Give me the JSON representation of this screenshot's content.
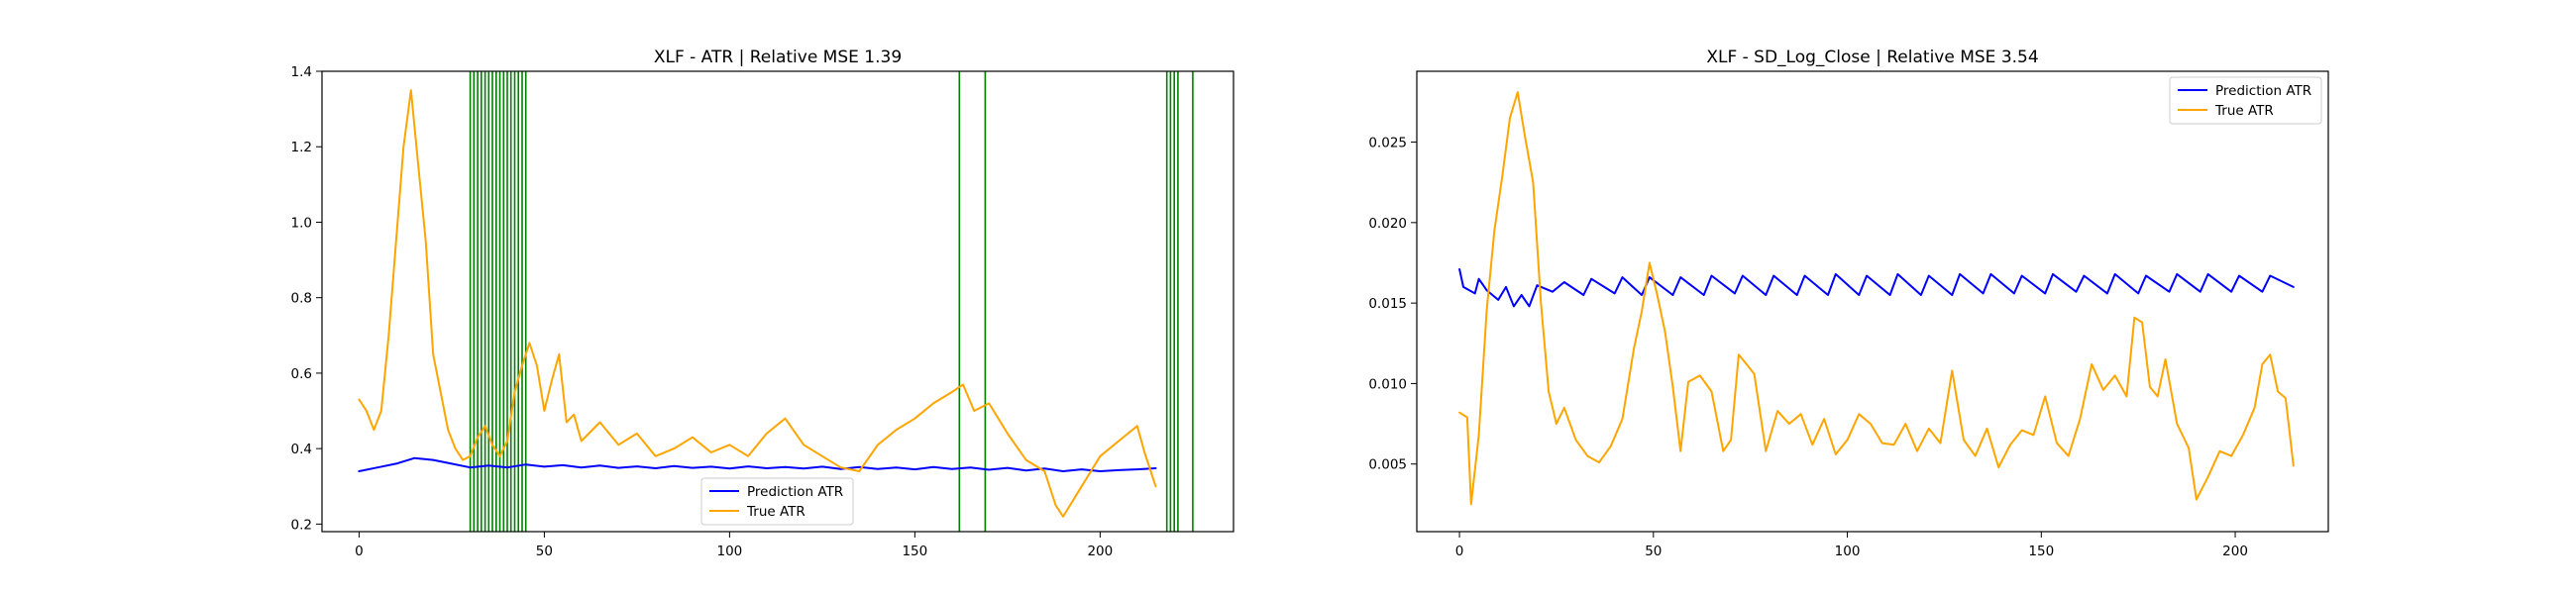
{
  "chart_data": [
    {
      "type": "line",
      "title": "XLF - ATR | Relative MSE 1.39",
      "xlabel": "",
      "ylabel": "",
      "xlim": [
        -10,
        236
      ],
      "ylim": [
        0.18,
        1.4
      ],
      "xticks": [
        0,
        50,
        100,
        150,
        200
      ],
      "yticks": [
        0.2,
        0.4,
        0.6,
        0.8,
        1.0,
        1.2,
        1.4
      ],
      "ytick_labels": [
        "0.2",
        "0.4",
        "0.6",
        "0.8",
        "1.0",
        "1.2",
        "1.4"
      ],
      "legend_position": "bottom-center",
      "vertical_lines": {
        "color": "#008000",
        "x": [
          30,
          31,
          32,
          33,
          34,
          35,
          36,
          37,
          38,
          39,
          40,
          41,
          42,
          43,
          44,
          45,
          162,
          169,
          218,
          219,
          220,
          221,
          225
        ]
      },
      "series": [
        {
          "name": "Prediction ATR",
          "color": "#0000ff",
          "x": [
            0,
            5,
            10,
            15,
            20,
            25,
            30,
            35,
            40,
            45,
            50,
            55,
            60,
            65,
            70,
            75,
            80,
            85,
            90,
            95,
            100,
            105,
            110,
            115,
            120,
            125,
            130,
            135,
            140,
            145,
            150,
            155,
            160,
            165,
            170,
            175,
            180,
            185,
            190,
            195,
            200,
            205,
            210,
            215
          ],
          "values": [
            0.34,
            0.35,
            0.36,
            0.375,
            0.37,
            0.36,
            0.35,
            0.355,
            0.35,
            0.358,
            0.352,
            0.356,
            0.35,
            0.355,
            0.349,
            0.353,
            0.348,
            0.354,
            0.349,
            0.352,
            0.347,
            0.353,
            0.348,
            0.351,
            0.347,
            0.352,
            0.346,
            0.351,
            0.346,
            0.35,
            0.345,
            0.351,
            0.346,
            0.35,
            0.344,
            0.349,
            0.342,
            0.347,
            0.34,
            0.345,
            0.34,
            0.343,
            0.345,
            0.348
          ]
        },
        {
          "name": "True ATR",
          "color": "#ffa500",
          "x": [
            0,
            2,
            4,
            6,
            8,
            10,
            12,
            14,
            16,
            18,
            20,
            22,
            24,
            26,
            28,
            30,
            32,
            34,
            36,
            38,
            40,
            42,
            44,
            46,
            48,
            50,
            52,
            54,
            56,
            58,
            60,
            65,
            70,
            75,
            80,
            85,
            90,
            95,
            100,
            105,
            110,
            115,
            120,
            125,
            130,
            135,
            140,
            145,
            150,
            155,
            160,
            163,
            166,
            170,
            175,
            180,
            185,
            188,
            190,
            195,
            200,
            205,
            210,
            212,
            215
          ],
          "values": [
            0.53,
            0.5,
            0.45,
            0.5,
            0.7,
            0.95,
            1.2,
            1.35,
            1.15,
            0.95,
            0.65,
            0.55,
            0.45,
            0.4,
            0.37,
            0.38,
            0.43,
            0.46,
            0.41,
            0.38,
            0.42,
            0.55,
            0.62,
            0.68,
            0.62,
            0.5,
            0.58,
            0.65,
            0.47,
            0.49,
            0.42,
            0.47,
            0.41,
            0.44,
            0.38,
            0.4,
            0.43,
            0.39,
            0.41,
            0.38,
            0.44,
            0.48,
            0.41,
            0.38,
            0.35,
            0.34,
            0.41,
            0.45,
            0.48,
            0.52,
            0.55,
            0.57,
            0.5,
            0.52,
            0.44,
            0.37,
            0.34,
            0.25,
            0.22,
            0.3,
            0.38,
            0.42,
            0.46,
            0.39,
            0.3
          ]
        }
      ]
    },
    {
      "type": "line",
      "title": "XLF - SD_Log_Close | Relative MSE 3.54",
      "xlabel": "",
      "ylabel": "",
      "xlim": [
        -11,
        224
      ],
      "ylim": [
        0.0008,
        0.0294
      ],
      "xticks": [
        0,
        50,
        100,
        150,
        200
      ],
      "yticks": [
        0.005,
        0.01,
        0.015,
        0.02,
        0.025
      ],
      "ytick_labels": [
        "0.005",
        "0.010",
        "0.015",
        "0.020",
        "0.025"
      ],
      "legend_position": "top-right",
      "series": [
        {
          "name": "Prediction ATR",
          "color": "#0000ff",
          "x": [
            0,
            1,
            4,
            5,
            7,
            10,
            12,
            14,
            16,
            18,
            20,
            24,
            27,
            32,
            34,
            40,
            42,
            47,
            49,
            55,
            57,
            63,
            65,
            71,
            73,
            79,
            81,
            87,
            89,
            95,
            97,
            103,
            105,
            111,
            113,
            119,
            121,
            127,
            129,
            135,
            137,
            143,
            145,
            151,
            153,
            159,
            161,
            167,
            169,
            175,
            177,
            183,
            185,
            191,
            193,
            199,
            201,
            207,
            209,
            215
          ],
          "values": [
            0.0171,
            0.016,
            0.0156,
            0.0165,
            0.0158,
            0.0152,
            0.016,
            0.0148,
            0.0155,
            0.0148,
            0.0161,
            0.0157,
            0.0163,
            0.0155,
            0.0165,
            0.0156,
            0.0166,
            0.0155,
            0.0166,
            0.0155,
            0.0166,
            0.0155,
            0.0167,
            0.0156,
            0.0167,
            0.0155,
            0.0167,
            0.0155,
            0.0167,
            0.0155,
            0.0168,
            0.0155,
            0.0167,
            0.0155,
            0.0168,
            0.0155,
            0.0167,
            0.0155,
            0.0168,
            0.0156,
            0.0168,
            0.0156,
            0.0167,
            0.0156,
            0.0168,
            0.0157,
            0.0167,
            0.0156,
            0.0168,
            0.0156,
            0.0167,
            0.0157,
            0.0168,
            0.0157,
            0.0168,
            0.0157,
            0.0167,
            0.0157,
            0.0167,
            0.016
          ]
        },
        {
          "name": "True ATR",
          "color": "#ffa500",
          "x": [
            0,
            2,
            3,
            5,
            7,
            9,
            11,
            13,
            15,
            17,
            19,
            21,
            23,
            25,
            27,
            30,
            33,
            36,
            39,
            42,
            45,
            47,
            49,
            51,
            53,
            55,
            57,
            59,
            62,
            65,
            68,
            70,
            72,
            74,
            76,
            79,
            82,
            85,
            88,
            91,
            94,
            97,
            100,
            103,
            106,
            109,
            112,
            115,
            118,
            121,
            124,
            127,
            130,
            133,
            136,
            139,
            142,
            145,
            148,
            151,
            154,
            157,
            160,
            163,
            166,
            169,
            172,
            174,
            176,
            178,
            180,
            182,
            185,
            188,
            190,
            193,
            196,
            199,
            202,
            205,
            207,
            209,
            211,
            213,
            215
          ],
          "values": [
            0.0082,
            0.0079,
            0.0025,
            0.0068,
            0.0145,
            0.0195,
            0.0228,
            0.0265,
            0.0281,
            0.0252,
            0.0225,
            0.015,
            0.0095,
            0.0075,
            0.0085,
            0.0065,
            0.0055,
            0.0051,
            0.0061,
            0.0078,
            0.0122,
            0.0145,
            0.0175,
            0.0155,
            0.0132,
            0.0098,
            0.0058,
            0.0101,
            0.0105,
            0.0095,
            0.0058,
            0.0065,
            0.0118,
            0.0112,
            0.0106,
            0.0058,
            0.0083,
            0.0075,
            0.0081,
            0.0062,
            0.0078,
            0.0056,
            0.0065,
            0.0081,
            0.0075,
            0.0063,
            0.0062,
            0.0075,
            0.0058,
            0.0072,
            0.0063,
            0.0108,
            0.0065,
            0.0055,
            0.0072,
            0.0048,
            0.0062,
            0.0071,
            0.0068,
            0.0092,
            0.0063,
            0.0055,
            0.0078,
            0.0112,
            0.0096,
            0.0105,
            0.0092,
            0.0141,
            0.0138,
            0.0098,
            0.0092,
            0.0115,
            0.0075,
            0.006,
            0.0028,
            0.0042,
            0.0058,
            0.0055,
            0.0068,
            0.0085,
            0.0112,
            0.0118,
            0.0095,
            0.0091,
            0.0049
          ]
        }
      ]
    }
  ]
}
